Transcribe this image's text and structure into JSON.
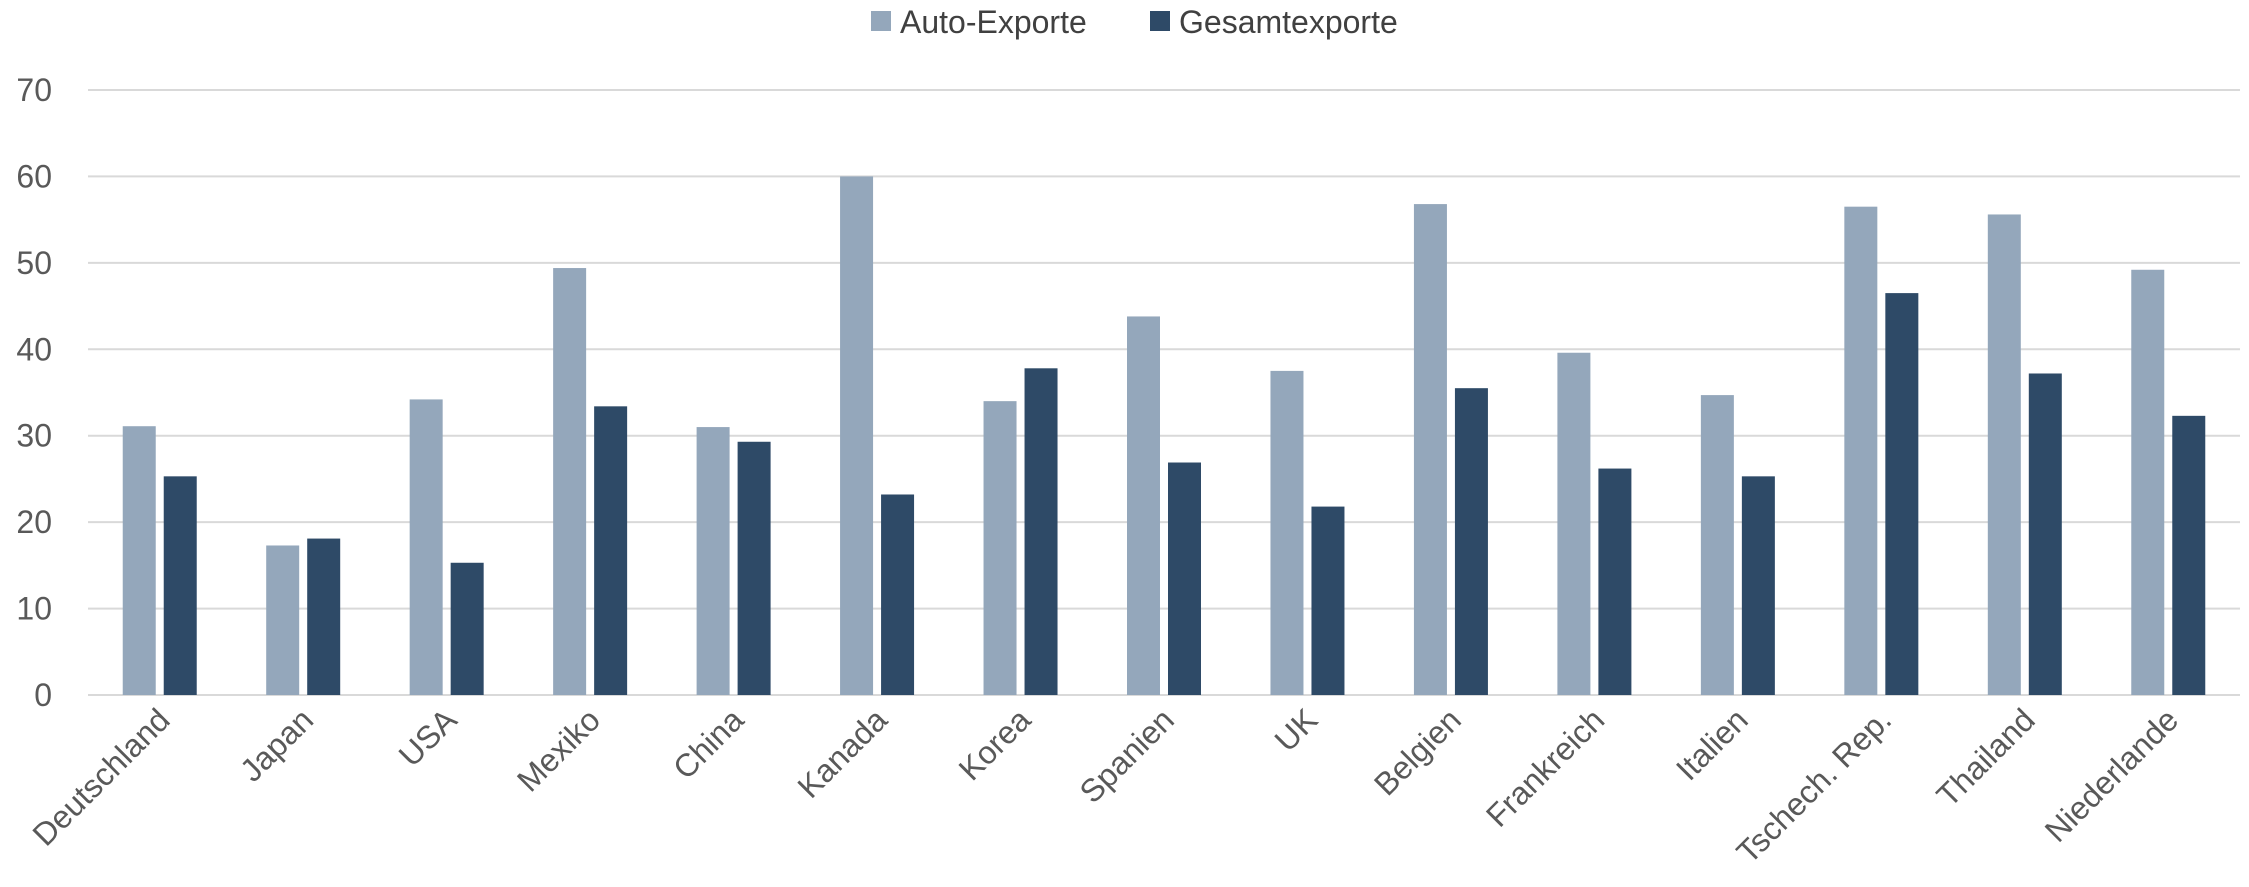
{
  "chart_data": {
    "type": "bar",
    "title": "",
    "xlabel": "",
    "ylabel": "",
    "ylim": [
      0,
      70
    ],
    "yticks": [
      0,
      10,
      20,
      30,
      40,
      50,
      60,
      70
    ],
    "grid": true,
    "legend_position": "top-center",
    "categories": [
      "Deutschland",
      "Japan",
      "USA",
      "Mexiko",
      "China",
      "Kanada",
      "Korea",
      "Spanien",
      "UK",
      "Belgien",
      "Frankreich",
      "Italien",
      "Tschech. Rep.",
      "Thailand",
      "Niederlande"
    ],
    "series": [
      {
        "name": "Auto-Exporte",
        "color": "#94a7bb",
        "values": [
          31.1,
          17.3,
          34.2,
          49.4,
          31.0,
          60.0,
          34.0,
          43.8,
          37.5,
          56.8,
          39.6,
          34.7,
          56.5,
          55.6,
          49.2
        ]
      },
      {
        "name": "Gesamtexporte",
        "color": "#2e4a67",
        "values": [
          25.3,
          18.1,
          15.3,
          33.4,
          29.3,
          23.2,
          37.8,
          26.9,
          21.8,
          35.5,
          26.2,
          25.3,
          46.5,
          37.2,
          32.3
        ]
      }
    ]
  }
}
